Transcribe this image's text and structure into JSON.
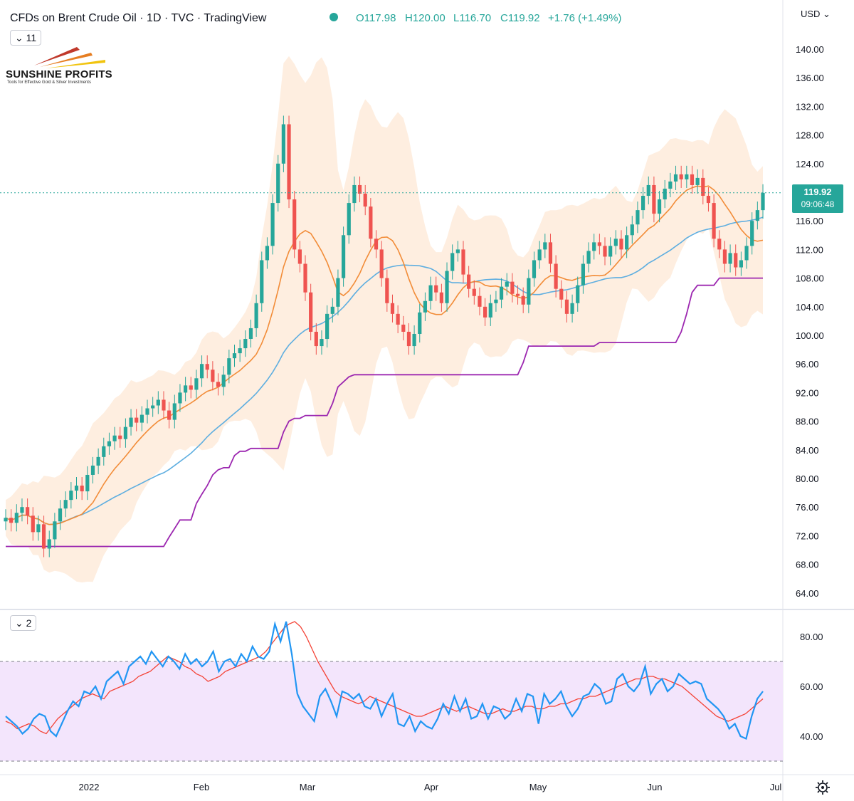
{
  "header": {
    "title": "CFDs on Brent Crude Oil · 1D · TVC · TradingView",
    "open": "O117.98",
    "high": "H120.00",
    "low": "L116.70",
    "close": "C119.92",
    "change": "+1.76 (+1.49%)",
    "currency": "USD"
  },
  "badges": {
    "main_indicators": "11",
    "sub_indicators": "2"
  },
  "logo": {
    "name": "SUNSHINE PROFITS",
    "tagline": "Tools for Effective Gold & Silver Investments"
  },
  "price_tag": {
    "price": "119.92",
    "countdown": "09:06:48"
  },
  "colors": {
    "up": "#26a69a",
    "down": "#ef5350",
    "accent": "#2962ff",
    "rsi": "#2196f3"
  },
  "chart_data": [
    {
      "type": "candlestick",
      "title": "CFDs on Brent Crude Oil · 1D · TVC · TradingView",
      "y_axis": {
        "ticks": [
          "140.00",
          "136.00",
          "132.00",
          "128.00",
          "124.00",
          "120.00",
          "116.00",
          "112.00",
          "108.00",
          "104.00",
          "100.00",
          "96.00",
          "92.00",
          "88.00",
          "84.00",
          "80.00",
          "76.00",
          "72.00",
          "68.00",
          "64.00"
        ],
        "range": [
          62,
          142
        ]
      },
      "x_axis": {
        "ticks": [
          "2022",
          "Feb",
          "Mar",
          "Apr",
          "May",
          "Jun",
          "Jul"
        ]
      },
      "last_price": 119.92,
      "closes_approx": [
        74.5,
        73.8,
        75.2,
        76.0,
        74.8,
        72.5,
        73.6,
        70.2,
        71.5,
        74.0,
        75.8,
        77.0,
        78.3,
        79.0,
        78.2,
        80.5,
        81.8,
        83.0,
        84.5,
        85.2,
        86.0,
        85.5,
        87.2,
        88.5,
        87.8,
        88.9,
        89.8,
        90.2,
        91.0,
        89.5,
        88.2,
        90.5,
        92.0,
        93.0,
        92.4,
        94.0,
        96.0,
        95.2,
        93.5,
        92.8,
        94.5,
        96.8,
        97.5,
        98.2,
        99.5,
        101.0,
        104.5,
        110.5,
        112.5,
        118.5,
        124.0,
        129.5,
        119.0,
        112.0,
        110.0,
        106.0,
        100.5,
        98.5,
        99.5,
        103.0,
        104.0,
        108.0,
        114.0,
        118.5,
        121.0,
        119.8,
        118.0,
        113.5,
        112.0,
        108.0,
        104.5,
        103.0,
        101.5,
        100.5,
        98.5,
        100.2,
        103.2,
        104.8,
        107.0,
        106.0,
        104.5,
        109.0,
        111.5,
        112.0,
        108.5,
        106.5,
        105.5,
        104.0,
        102.5,
        104.5,
        105.0,
        106.8,
        107.5,
        105.8,
        105.5,
        104.3,
        108.0,
        110.5,
        112.0,
        113.0,
        110.0,
        106.5,
        105.0,
        103.0,
        104.5,
        107.0,
        110.0,
        111.8,
        113.0,
        112.5,
        111.0,
        112.5,
        113.5,
        112.0,
        114.0,
        115.5,
        117.5,
        119.5,
        121.0,
        117.0,
        119.0,
        120.5,
        121.5,
        122.5,
        121.8,
        122.5,
        121.0,
        122.0,
        119.5,
        118.5,
        113.5,
        112.0,
        110.0,
        111.5,
        109.5,
        110.5,
        112.5,
        116.0,
        117.5,
        119.92
      ]
    },
    {
      "type": "line",
      "title": "",
      "y_axis": {
        "ticks": [
          "80.00",
          "60.00",
          "40.00"
        ],
        "range": [
          30,
          88
        ],
        "band": [
          30,
          70
        ]
      },
      "series": [
        {
          "values": [
            46,
            45,
            43,
            44,
            45,
            44,
            42,
            41,
            44,
            47,
            49,
            51,
            53,
            55,
            56,
            57,
            56,
            55,
            58,
            59,
            60,
            61,
            62,
            64,
            65,
            66,
            68,
            70,
            72,
            71,
            70,
            68,
            67,
            65,
            64,
            62,
            63,
            64,
            66,
            67,
            68,
            69,
            70,
            71,
            72,
            74,
            77,
            80,
            83,
            85,
            86,
            84,
            80,
            75,
            70,
            66,
            62,
            58,
            56,
            55,
            54,
            53,
            54,
            56,
            55,
            54,
            53,
            52,
            51,
            50,
            49,
            48,
            48,
            49,
            50,
            51,
            52,
            51,
            50,
            51,
            52,
            51,
            50,
            49,
            49,
            50,
            51,
            50,
            50,
            51,
            52,
            52,
            51,
            51,
            52,
            52,
            53,
            53,
            54,
            55,
            55,
            56,
            56,
            57,
            58,
            59,
            60,
            61,
            62,
            63,
            63,
            64,
            64,
            63,
            63,
            62,
            61,
            60,
            58,
            56,
            54,
            52,
            50,
            48,
            47,
            46,
            47,
            48,
            49,
            51,
            53,
            55
          ],
          "color": "#f44336"
        },
        {
          "values": [
            48,
            46,
            44,
            41,
            43,
            47,
            49,
            48,
            42,
            40,
            45,
            50,
            54,
            52,
            58,
            57,
            60,
            55,
            62,
            64,
            66,
            61,
            68,
            70,
            72,
            69,
            74,
            71,
            68,
            72,
            70,
            67,
            73,
            69,
            71,
            68,
            70,
            74,
            66,
            70,
            71,
            68,
            73,
            70,
            76,
            72,
            71,
            74,
            85,
            78,
            86,
            73,
            57,
            52,
            49,
            46,
            56,
            59,
            54,
            48,
            58,
            57,
            55,
            57,
            52,
            51,
            55,
            48,
            53,
            57,
            45,
            44,
            48,
            42,
            46,
            44,
            43,
            47,
            53,
            49,
            56,
            50,
            55,
            47,
            48,
            53,
            47,
            52,
            51,
            47,
            49,
            55,
            50,
            57,
            56,
            45,
            57,
            53,
            55,
            58,
            52,
            48,
            51,
            56,
            57,
            61,
            59,
            53,
            54,
            63,
            65,
            60,
            58,
            61,
            68,
            57,
            61,
            63,
            58,
            60,
            65,
            63,
            61,
            62,
            61,
            55,
            53,
            51,
            48,
            43,
            45,
            40,
            39,
            48,
            55,
            58
          ],
          "color": "#2196f3"
        }
      ]
    }
  ]
}
